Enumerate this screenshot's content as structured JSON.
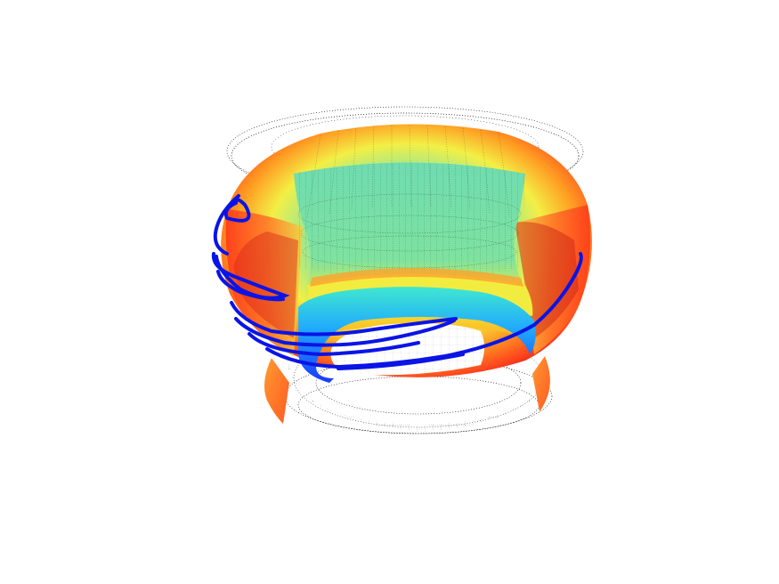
{
  "figure": {
    "subject": "torus-surface-with-field-line",
    "colormap": [
      "#1a3cff",
      "#20a0ff",
      "#40e0c0",
      "#f0f040",
      "#ffa020",
      "#ff3a1a",
      "#e01010"
    ],
    "trajectory_color": "#0a14e6",
    "wireframe_color": "#000000",
    "background": "#ffffff"
  }
}
